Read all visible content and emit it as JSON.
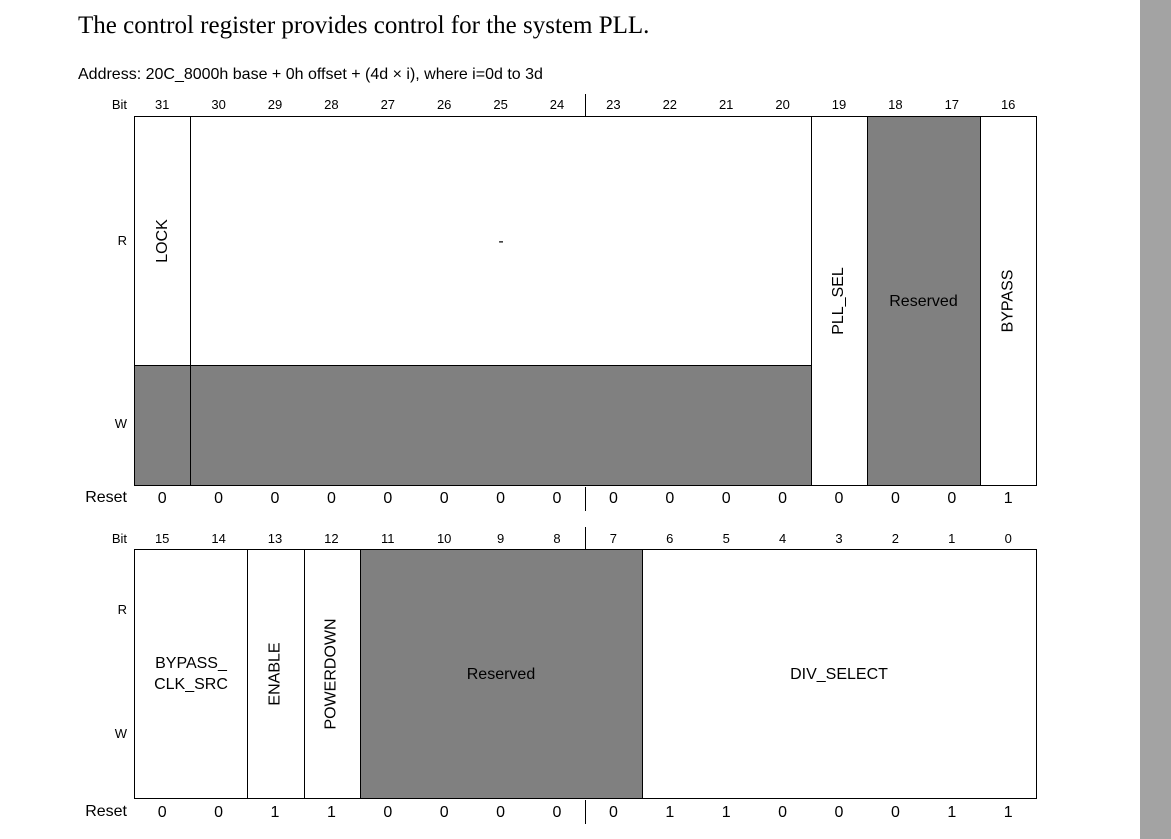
{
  "intro_text": "The control register provides control for the system PLL.",
  "address_text": "Address: 20C_8000h base + 0h offset + (4d × i), where i=0d to 3d",
  "labels": {
    "bit": "Bit",
    "read": "R",
    "write": "W",
    "reset": "Reset"
  },
  "upper": {
    "bits": [
      "31",
      "30",
      "29",
      "28",
      "27",
      "26",
      "25",
      "24",
      "23",
      "22",
      "21",
      "20",
      "19",
      "18",
      "17",
      "16"
    ],
    "reset": [
      "0",
      "0",
      "0",
      "0",
      "0",
      "0",
      "0",
      "0",
      "0",
      "0",
      "0",
      "0",
      "0",
      "0",
      "0",
      "1"
    ],
    "fields": {
      "lock": "LOCK",
      "dash": "-",
      "pll_sel": "PLL_SEL",
      "reserved": "Reserved",
      "bypass": "BYPASS"
    }
  },
  "lower": {
    "bits": [
      "15",
      "14",
      "13",
      "12",
      "11",
      "10",
      "9",
      "8",
      "7",
      "6",
      "5",
      "4",
      "3",
      "2",
      "1",
      "0"
    ],
    "reset": [
      "0",
      "0",
      "1",
      "1",
      "0",
      "0",
      "0",
      "0",
      "0",
      "1",
      "1",
      "0",
      "0",
      "0",
      "1",
      "1"
    ],
    "fields": {
      "bypass_clk_src_line1": "BYPASS_",
      "bypass_clk_src_line2": "CLK_SRC",
      "enable": "ENABLE",
      "powerdown": "POWERDOWN",
      "reserved": "Reserved",
      "div_select": "DIV_SELECT"
    }
  }
}
